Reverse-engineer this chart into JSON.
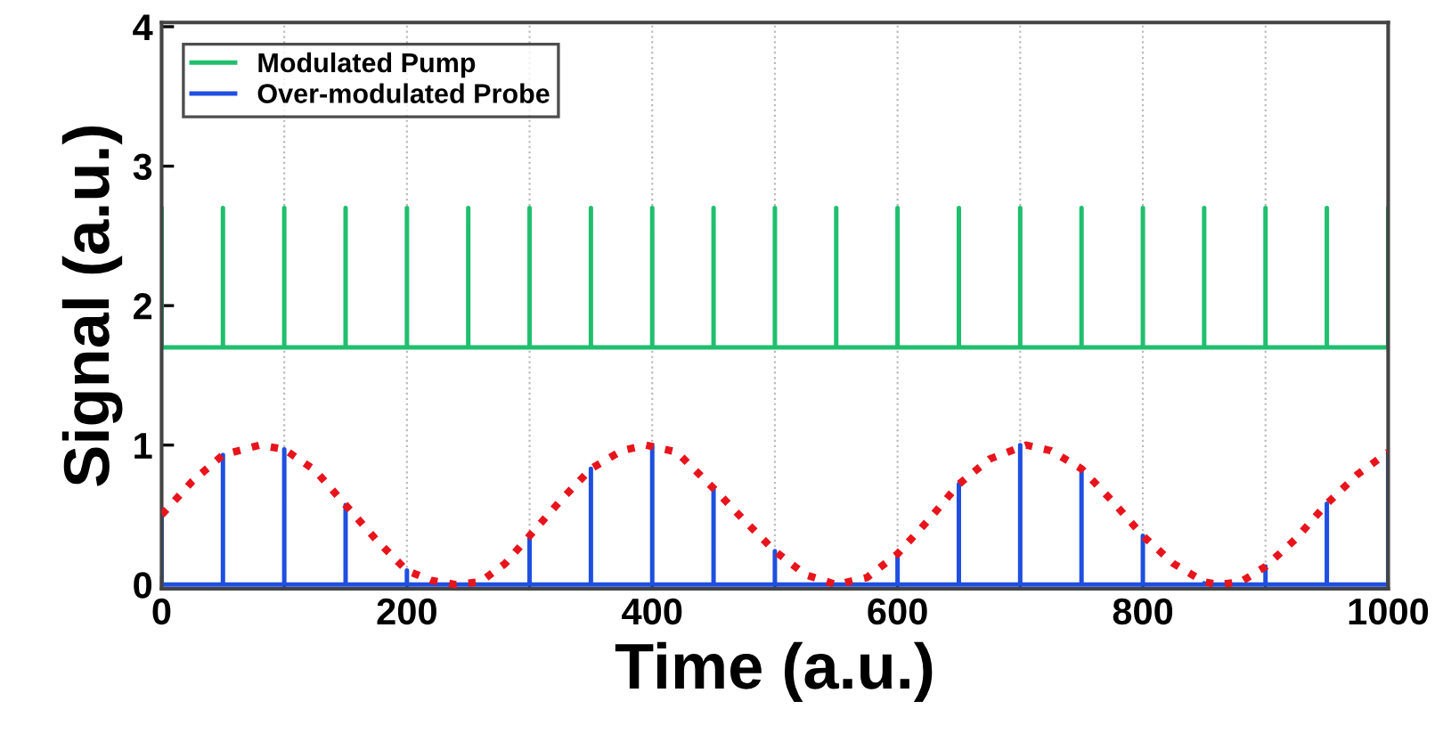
{
  "chart_data": {
    "type": "line",
    "xlabel": "Time (a.u.)",
    "ylabel": "Signal (a.u.)",
    "xlim": [
      0,
      1000
    ],
    "ylim": [
      -0.03,
      4.03
    ],
    "xticks": [
      0,
      {
        "value": 100,
        "label": null
      },
      200,
      {
        "value": 300,
        "label": null
      },
      400,
      {
        "value": 500,
        "label": null
      },
      600,
      {
        "value": 700,
        "label": null
      },
      800,
      {
        "value": 900,
        "label": null
      },
      1000
    ],
    "yticks": [
      0,
      1,
      2,
      3,
      4
    ],
    "grid": "x",
    "legend": "top left",
    "series": [
      {
        "name": "Modulated Pump",
        "color": "#1fbf6e",
        "line_style": "solid",
        "x": [
          0,
          0,
          0,
          50,
          50,
          50,
          100,
          100,
          100,
          150,
          150,
          150,
          200,
          200,
          200,
          250,
          250,
          250,
          300,
          300,
          300,
          350,
          350,
          350,
          400,
          400,
          400,
          450,
          450,
          450,
          500,
          500,
          500,
          550,
          550,
          550,
          600,
          600,
          600,
          650,
          650,
          650,
          700,
          700,
          700,
          750,
          750,
          750,
          800,
          800,
          800,
          850,
          850,
          850,
          900,
          900,
          900,
          950,
          950,
          950,
          1000,
          1000,
          1000
        ],
        "values": [
          1.7,
          2.7,
          1.7,
          1.7,
          2.7,
          1.7,
          1.7,
          2.7,
          1.7,
          1.7,
          2.7,
          1.7,
          1.7,
          2.7,
          1.7,
          1.7,
          2.7,
          1.7,
          1.7,
          2.7,
          1.7,
          1.7,
          2.7,
          1.7,
          1.7,
          2.7,
          1.7,
          1.7,
          2.7,
          1.7,
          1.7,
          2.7,
          1.7,
          1.7,
          2.7,
          1.7,
          1.7,
          2.7,
          1.7,
          1.7,
          2.7,
          1.7,
          1.7,
          2.7,
          1.7,
          1.7,
          2.7,
          1.7,
          1.7,
          2.7,
          1.7,
          1.7,
          2.7,
          1.7,
          1.7,
          2.7,
          1.7,
          1.7,
          2.7,
          1.7,
          1.7,
          2.7,
          1.7
        ]
      },
      {
        "name": "Over-modulated Probe",
        "color": "#1f4fe0",
        "line_style": "solid",
        "x": [
          0,
          0,
          0,
          50,
          50,
          50,
          100,
          100,
          100,
          150,
          150,
          150,
          200,
          200,
          200,
          250,
          250,
          250,
          300,
          300,
          300,
          350,
          350,
          350,
          400,
          400,
          400,
          450,
          450,
          450,
          500,
          500,
          500,
          550,
          550,
          550,
          600,
          600,
          600,
          650,
          650,
          650,
          700,
          700,
          700,
          750,
          750,
          750,
          800,
          800,
          800,
          850,
          850,
          850,
          900,
          900,
          900,
          950,
          950,
          950,
          1000,
          1000,
          1000
        ],
        "values": [
          0,
          0.51,
          0,
          0,
          0.93,
          0,
          0,
          0.97,
          0,
          0,
          0.57,
          0,
          0,
          0.1,
          0,
          0,
          0,
          0,
          0,
          0.35,
          0,
          0,
          0.83,
          0,
          0,
          1.0,
          0,
          0,
          0.69,
          0,
          0,
          0.24,
          0,
          0,
          0,
          0,
          0,
          0.22,
          0,
          0,
          0.72,
          0,
          0,
          1.0,
          0,
          0,
          0.83,
          0,
          0,
          0.35,
          0,
          0,
          0.01,
          0,
          0,
          0.13,
          0,
          0,
          0.58,
          0,
          0,
          0.95,
          0
        ]
      },
      {
        "color": "#e8141c",
        "line_style": "dotted",
        "x": [
          0,
          25,
          50,
          80,
          100,
          125,
          150,
          175,
          200,
          220,
          240,
          260,
          280,
          300,
          325,
          350,
          375,
          395,
          420,
          450,
          475,
          500,
          525,
          550,
          575,
          600,
          625,
          650,
          675,
          705,
          725,
          750,
          775,
          800,
          825,
          850,
          862,
          880,
          900,
          925,
          950,
          975,
          1000
        ],
        "values": [
          0.5,
          0.74,
          0.93,
          1.0,
          0.97,
          0.82,
          0.57,
          0.32,
          0.1,
          0.03,
          0.0,
          0.02,
          0.15,
          0.35,
          0.6,
          0.83,
          0.96,
          1.0,
          0.95,
          0.69,
          0.46,
          0.24,
          0.07,
          0.0,
          0.05,
          0.22,
          0.46,
          0.72,
          0.9,
          1.0,
          0.96,
          0.83,
          0.6,
          0.35,
          0.15,
          0.02,
          0.0,
          0.02,
          0.13,
          0.33,
          0.58,
          0.79,
          0.95
        ]
      }
    ]
  }
}
